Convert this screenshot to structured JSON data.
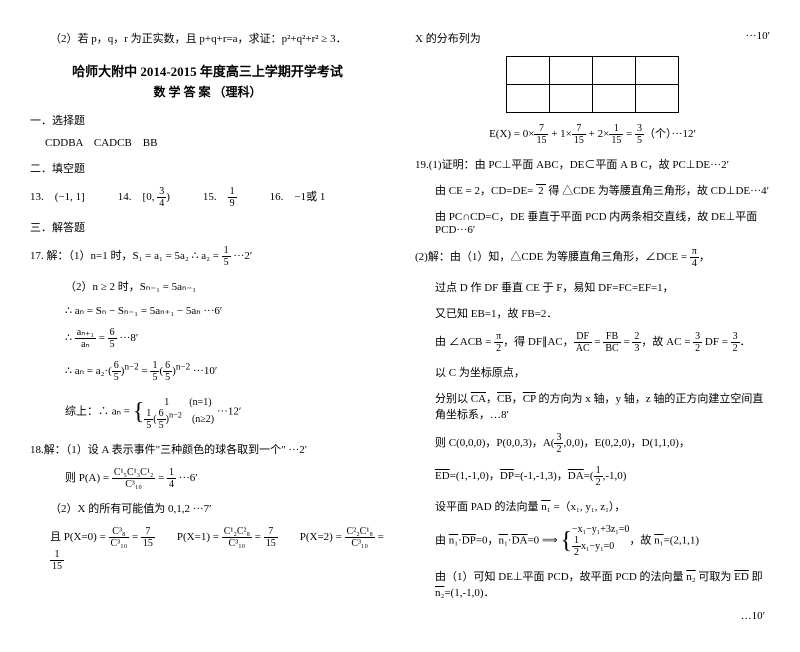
{
  "left": {
    "q2": "（2）若 p，q，r 为正实数，且 p+q+r=a，求证：p²+q²+r² ≥ 3．",
    "title": "哈师大附中 2014-2015 年度高三上学期开学考试",
    "subtitle": "数 学 答 案 （理科）",
    "s1": "一．选择题",
    "s1a": "CDDBA　CADCB　BB",
    "s2": "二．填空题",
    "s2a": "13.　(−1, 1]　　　14.　[0, 3/4)　　　15.　1/9　　　16.　−1或 1",
    "s3": "三．解答题",
    "q17": "17. 解：（1）n=1 时，S₁ = a₁ = 5a₂ ∴ a₂ = 1/5 ···2′",
    "q17b": "（2）n ≥ 2 时，Sₙ₋₁ = 5aₙ₋₁",
    "q17c": "∴ aₙ = Sₙ − Sₙ₋₁ = 5aₙ₊₁ − 5aₙ ···6′",
    "q17d": "∴ aₙ₊₁/aₙ = 6/5 ···8′",
    "q17e": "∴ aₙ = a₂·(6/5)ⁿ⁻² = (1/5)(6/5)ⁿ⁻² ···10′",
    "q17f": "综上：∴ aₙ = { 1 (n=1) ; (1/5)(6/5)ⁿ⁻² (n≥2) } ···12′",
    "q18": "18.解：（1）设 A 表示事件\"三种颜色的球各取到一个\" ···2′",
    "q18a": "则 P(A) = C¹₅C¹₃C¹₂/C³₁₀ = 1/4 ···6′",
    "q18b": "（2）X 的所有可能值为 0,1,2 ···7′",
    "q18c": "且 P(X=0) = C³₈/C³₁₀ = 7/15　　P(X=1) = C¹₂C²₈/C³₁₀ = 7/15　　P(X=2) = C²₂C¹₈/C³₁₀ = 1/15"
  },
  "right": {
    "r1": "X 的分布列为",
    "r1m": "···10′",
    "ex": "E(X) = 0×7/15 + 1×7/15 + 2×1/15 = 3/5（个）···12′",
    "q19": "19.(1)证明：由 PC⊥平面 ABC，DE⊂平面 A B C，故 PC⊥DE···2′",
    "q19a": "由 CE = 2，CD=DE= √2 得 △CDE 为等腰直角三角形，故 CD⊥DE···4′",
    "q19b": "由 PC∩CD=C，DE 垂直于平面 PCD 内两条相交直线，故 DE⊥平面 PCD···6′",
    "q19_2": "(2)解：由（1）知，△CDE 为等腰直角三角形，∠DCE = π/4，",
    "q19c": "过点 D 作 DF 垂直 CE 于 F，易知 DF=FC=EF=1，",
    "q19d": "又已知 EB=1，故 FB=2．",
    "q19e": "由 ∠ACB = π/2，得 DF∥AC，DF/AC = FB/BC = 2/3，故 AC = 3/2 DF = 3/2．",
    "q19f": "以 C 为坐标原点，",
    "q19g": "分别以 CA，CB，CP 的方向为 x 轴，y 轴，z 轴的正方向建立空间直角坐标系，…8′",
    "q19h": "则 C(0,0,0)，P(0,0,3)，A(3/2,0,0)，E(0,2,0)，D(1,1,0)，",
    "q19i": "ED =(1,-1,0)，DP =(-1,-1,3)，DA =(1/2,-1,0)",
    "q19j": "设平面 PAD 的法向量 n₁ =（x₁, y₁, z₁），",
    "q19k": "由 n₁·DP=0，n₁·DA=0 ⟹ { −x₁−y₁+3z₁=0 ; (1/2)x₁−y₁=0 }，故 n₁=(2,1,1)",
    "q19l": "由（1）可知 DE⊥平面 PCD，故平面 PCD 的法向量 n₂ 可取为 ED 即 n₂=(1,-1,0)．",
    "r10": "…10′"
  }
}
